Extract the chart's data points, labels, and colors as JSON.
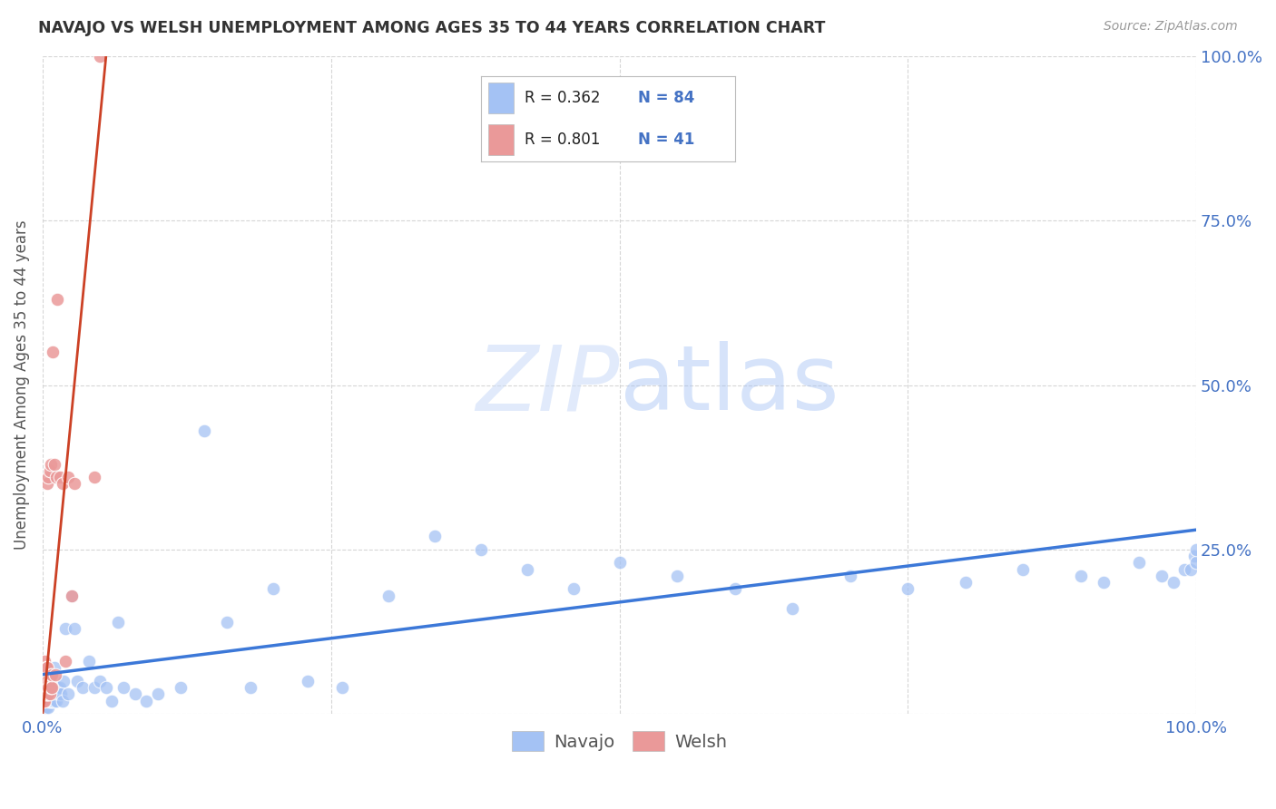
{
  "title": "NAVAJO VS WELSH UNEMPLOYMENT AMONG AGES 35 TO 44 YEARS CORRELATION CHART",
  "source": "Source: ZipAtlas.com",
  "ylabel": "Unemployment Among Ages 35 to 44 years",
  "xlim": [
    0,
    1
  ],
  "ylim": [
    0,
    1
  ],
  "xticks": [
    0.0,
    0.25,
    0.5,
    0.75,
    1.0
  ],
  "yticks": [
    0.0,
    0.25,
    0.5,
    0.75,
    1.0
  ],
  "xticklabels": [
    "0.0%",
    "",
    "",
    "",
    "100.0%"
  ],
  "yticklabels_right": [
    "100.0%",
    "75.0%",
    "50.0%",
    "25.0%",
    ""
  ],
  "navajo_color": "#a4c2f4",
  "welsh_color": "#ea9999",
  "navajo_R": 0.362,
  "navajo_N": 84,
  "welsh_R": 0.801,
  "welsh_N": 41,
  "navajo_line_color": "#3c78d8",
  "welsh_line_color": "#cc4125",
  "tick_color": "#4472c4",
  "navajo_x": [
    0.001,
    0.001,
    0.001,
    0.002,
    0.002,
    0.002,
    0.002,
    0.003,
    0.003,
    0.003,
    0.003,
    0.004,
    0.004,
    0.004,
    0.005,
    0.005,
    0.005,
    0.005,
    0.006,
    0.006,
    0.006,
    0.007,
    0.007,
    0.007,
    0.008,
    0.008,
    0.009,
    0.009,
    0.01,
    0.01,
    0.011,
    0.012,
    0.013,
    0.014,
    0.015,
    0.016,
    0.017,
    0.018,
    0.02,
    0.022,
    0.025,
    0.028,
    0.03,
    0.035,
    0.04,
    0.045,
    0.05,
    0.055,
    0.06,
    0.065,
    0.07,
    0.08,
    0.09,
    0.1,
    0.12,
    0.14,
    0.16,
    0.18,
    0.2,
    0.23,
    0.26,
    0.3,
    0.34,
    0.38,
    0.42,
    0.46,
    0.5,
    0.55,
    0.6,
    0.65,
    0.7,
    0.75,
    0.8,
    0.85,
    0.9,
    0.92,
    0.95,
    0.97,
    0.98,
    0.99,
    0.995,
    0.998,
    1.0,
    1.0
  ],
  "navajo_y": [
    0.02,
    0.03,
    0.04,
    0.01,
    0.02,
    0.03,
    0.05,
    0.02,
    0.03,
    0.04,
    0.01,
    0.02,
    0.04,
    0.05,
    0.01,
    0.02,
    0.03,
    0.06,
    0.02,
    0.03,
    0.05,
    0.02,
    0.03,
    0.04,
    0.02,
    0.03,
    0.02,
    0.04,
    0.02,
    0.07,
    0.03,
    0.02,
    0.04,
    0.03,
    0.04,
    0.03,
    0.02,
    0.05,
    0.13,
    0.03,
    0.18,
    0.13,
    0.05,
    0.04,
    0.08,
    0.04,
    0.05,
    0.04,
    0.02,
    0.14,
    0.04,
    0.03,
    0.02,
    0.03,
    0.04,
    0.43,
    0.14,
    0.04,
    0.19,
    0.05,
    0.04,
    0.18,
    0.27,
    0.25,
    0.22,
    0.19,
    0.23,
    0.21,
    0.19,
    0.16,
    0.21,
    0.19,
    0.2,
    0.22,
    0.21,
    0.2,
    0.23,
    0.21,
    0.2,
    0.22,
    0.22,
    0.24,
    0.23,
    0.25
  ],
  "welsh_x": [
    0.001,
    0.001,
    0.001,
    0.001,
    0.002,
    0.002,
    0.002,
    0.002,
    0.002,
    0.003,
    0.003,
    0.003,
    0.003,
    0.004,
    0.004,
    0.004,
    0.004,
    0.005,
    0.005,
    0.005,
    0.006,
    0.006,
    0.006,
    0.007,
    0.007,
    0.007,
    0.008,
    0.008,
    0.009,
    0.01,
    0.011,
    0.012,
    0.013,
    0.015,
    0.017,
    0.02,
    0.022,
    0.025,
    0.028,
    0.045,
    0.05
  ],
  "welsh_y": [
    0.02,
    0.03,
    0.04,
    0.05,
    0.02,
    0.03,
    0.04,
    0.06,
    0.08,
    0.03,
    0.04,
    0.05,
    0.07,
    0.03,
    0.05,
    0.07,
    0.35,
    0.03,
    0.04,
    0.36,
    0.03,
    0.05,
    0.37,
    0.04,
    0.06,
    0.38,
    0.04,
    0.06,
    0.55,
    0.38,
    0.06,
    0.36,
    0.63,
    0.36,
    0.35,
    0.08,
    0.36,
    0.18,
    0.35,
    0.36,
    1.0
  ],
  "navajo_line_x": [
    0.0,
    1.0
  ],
  "navajo_line_y": [
    0.06,
    0.28
  ],
  "welsh_line_x": [
    0.0,
    0.055
  ],
  "welsh_line_y": [
    0.0,
    1.0
  ]
}
